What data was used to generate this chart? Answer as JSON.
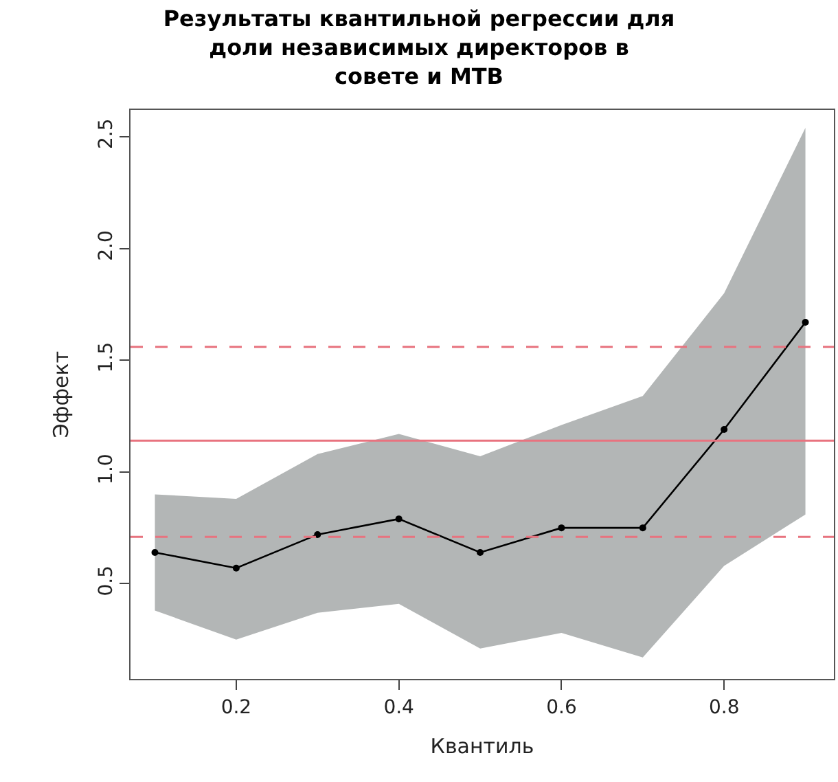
{
  "chart_data": {
    "type": "line",
    "title": "Результаты квантильной регрессии для\nдоли независимых директоров в\nсовете и МТВ",
    "xlabel": "Квантиль",
    "ylabel": "Эффект",
    "x": [
      0.1,
      0.2,
      0.3,
      0.4,
      0.5,
      0.6,
      0.7,
      0.8,
      0.9
    ],
    "series": [
      {
        "color": "#000000",
        "values": [
          0.64,
          0.57,
          0.72,
          0.79,
          0.64,
          0.75,
          0.75,
          1.19,
          1.67
        ],
        "lower": [
          0.38,
          0.25,
          0.37,
          0.41,
          0.21,
          0.28,
          0.17,
          0.58,
          0.81
        ],
        "upper": [
          0.9,
          0.88,
          1.08,
          1.17,
          1.07,
          1.21,
          1.34,
          1.8,
          2.54
        ]
      }
    ],
    "xlim": [
      0.07,
      0.935
    ],
    "ylim": [
      0.074,
      2.62
    ],
    "xticks": [
      0.2,
      0.4,
      0.6,
      0.8
    ],
    "yticks": [
      0.5,
      {
        "value": 1,
        "label": "1.0"
      },
      1.5,
      {
        "value": 2,
        "label": "2.0"
      },
      2.5
    ],
    "ref_lines": [
      {
        "axis": "y",
        "value": 1.14,
        "color": "#e8737f",
        "line_style": "solid"
      },
      {
        "axis": "y",
        "value": 1.56,
        "color": "#e8737f",
        "line_style": "dashed"
      },
      {
        "axis": "y",
        "value": 0.71,
        "color": "#e8737f",
        "line_style": "dashed"
      }
    ],
    "marker": "circle",
    "line_style": "solid"
  }
}
